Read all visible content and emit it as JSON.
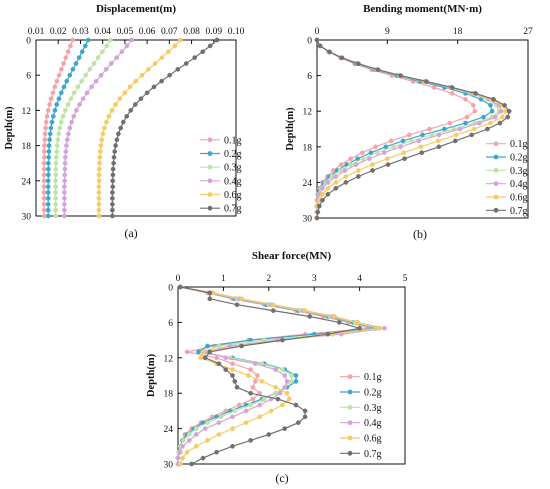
{
  "figure": {
    "series_names": [
      "0.1g",
      "0.2g",
      "0.3g",
      "0.4g",
      "0.6g",
      "0.7g"
    ],
    "series_colors": [
      "#f4a3ab",
      "#3aa7cf",
      "#bfe3a6",
      "#d4a3dc",
      "#f7cb63",
      "#707070"
    ]
  },
  "chart_data": [
    {
      "type": "line",
      "panel_label": "(a)",
      "title": "Displacement(m)",
      "xlabel": "Displacement(m)",
      "ylabel": "Depth(m)",
      "xlim": [
        0.01,
        0.1
      ],
      "ylim": [
        0,
        30
      ],
      "x_axis_position": "top",
      "y_inverted": true,
      "xticks": [
        "0.01",
        "0.02",
        "0.03",
        "0.04",
        "0.05",
        "0.06",
        "0.07",
        "0.08",
        "0.09",
        "0.10"
      ],
      "yticks": [
        "0",
        "6",
        "12",
        "18",
        "24",
        "30"
      ],
      "legend_position": "right",
      "depth": [
        0,
        1,
        2,
        3,
        4,
        5,
        6,
        7,
        8,
        9,
        10,
        11,
        12,
        13,
        14,
        15,
        16,
        17,
        18,
        19,
        20,
        21,
        22,
        23,
        24,
        25,
        26,
        27,
        28,
        29,
        30
      ],
      "series": [
        {
          "name": "0.1g",
          "values": [
            0.0265,
            0.0255,
            0.0244,
            0.0234,
            0.0224,
            0.0214,
            0.0204,
            0.0194,
            0.0185,
            0.0176,
            0.0168,
            0.0161,
            0.0155,
            0.015,
            0.0146,
            0.0143,
            0.0141,
            0.0139,
            0.0138,
            0.0137,
            0.0137,
            0.0136,
            0.0136,
            0.0136,
            0.0136,
            0.0136,
            0.0136,
            0.0136,
            0.0136,
            0.0136,
            0.0136
          ]
        },
        {
          "name": "0.2g",
          "values": [
            0.0335,
            0.0322,
            0.0308,
            0.0294,
            0.028,
            0.0266,
            0.0252,
            0.0238,
            0.0226,
            0.0214,
            0.0203,
            0.0193,
            0.0185,
            0.0178,
            0.0172,
            0.0167,
            0.0164,
            0.0161,
            0.0159,
            0.0158,
            0.0157,
            0.0156,
            0.0156,
            0.0156,
            0.0155,
            0.0155,
            0.0155,
            0.0155,
            0.0155,
            0.0155,
            0.0155
          ]
        },
        {
          "name": "0.3g",
          "values": [
            0.0435,
            0.0418,
            0.0399,
            0.038,
            0.0361,
            0.0342,
            0.0323,
            0.0305,
            0.0288,
            0.0272,
            0.0257,
            0.0244,
            0.0232,
            0.0222,
            0.0214,
            0.0207,
            0.0202,
            0.0198,
            0.0195,
            0.0193,
            0.0191,
            0.019,
            0.0189,
            0.0189,
            0.0188,
            0.0188,
            0.0188,
            0.0188,
            0.0188,
            0.0188,
            0.0188
          ]
        },
        {
          "name": "0.4g",
          "values": [
            0.053,
            0.0509,
            0.0486,
            0.0463,
            0.0439,
            0.0416,
            0.0393,
            0.0371,
            0.035,
            0.033,
            0.0312,
            0.0296,
            0.0282,
            0.027,
            0.026,
            0.0252,
            0.0246,
            0.0241,
            0.0237,
            0.0234,
            0.0232,
            0.0231,
            0.023,
            0.0229,
            0.0229,
            0.0228,
            0.0228,
            0.0228,
            0.0228,
            0.0228,
            0.0228
          ]
        },
        {
          "name": "0.6g",
          "values": [
            0.075,
            0.0724,
            0.0696,
            0.0666,
            0.0636,
            0.0606,
            0.0577,
            0.0549,
            0.0523,
            0.0499,
            0.0477,
            0.0458,
            0.0442,
            0.0428,
            0.0417,
            0.0408,
            0.0401,
            0.0396,
            0.0392,
            0.0389,
            0.0387,
            0.0386,
            0.0385,
            0.0384,
            0.0384,
            0.0383,
            0.0383,
            0.0383,
            0.0383,
            0.0383,
            0.0383
          ]
        },
        {
          "name": "0.7g",
          "values": [
            0.0915,
            0.0884,
            0.085,
            0.0814,
            0.0776,
            0.0738,
            0.0701,
            0.0665,
            0.0631,
            0.06,
            0.0572,
            0.0547,
            0.0526,
            0.0508,
            0.0493,
            0.0481,
            0.0471,
            0.0464,
            0.0458,
            0.0454,
            0.0451,
            0.0449,
            0.0447,
            0.0446,
            0.0445,
            0.0445,
            0.0444,
            0.0444,
            0.0444,
            0.0444,
            0.0444
          ]
        }
      ]
    },
    {
      "type": "line",
      "panel_label": "(b)",
      "title": "Bending moment(MN·m)",
      "xlabel": "Bending moment(MN·m)",
      "ylabel": "Depth(m)",
      "xlim": [
        0,
        27
      ],
      "ylim": [
        0,
        30
      ],
      "x_axis_position": "top",
      "y_inverted": true,
      "xticks": [
        "0",
        "9",
        "18",
        "27"
      ],
      "yticks": [
        "0",
        "6",
        "12",
        "18",
        "24",
        "30"
      ],
      "legend_position": "bottom-right",
      "depth": [
        0,
        1,
        2,
        3,
        4,
        5,
        6,
        7,
        8,
        9,
        10,
        11,
        12,
        13,
        14,
        15,
        16,
        17,
        18,
        19,
        20,
        21,
        22,
        23,
        24,
        25,
        26,
        27,
        28,
        29,
        30
      ],
      "series": [
        {
          "name": "0.1g",
          "values": [
            0,
            0.4,
            1.5,
            3.0,
            4.8,
            7.0,
            9.6,
            12.3,
            15.0,
            17.3,
            19.0,
            20.0,
            20.2,
            19.2,
            17.0,
            14.4,
            11.8,
            9.5,
            7.5,
            5.8,
            4.3,
            3.1,
            2.1,
            1.3,
            0.7,
            0.3,
            0.1,
            0.0,
            0.0,
            0.0,
            0.0
          ]
        },
        {
          "name": "0.2g",
          "values": [
            0,
            0.4,
            1.6,
            3.1,
            5.0,
            7.4,
            10.2,
            13.2,
            16.3,
            19.0,
            21.0,
            22.2,
            22.4,
            21.3,
            19.0,
            16.3,
            13.5,
            11.0,
            8.8,
            6.9,
            5.2,
            3.8,
            2.6,
            1.6,
            0.9,
            0.4,
            0.15,
            0.05,
            0.0,
            0.0,
            0.0
          ]
        },
        {
          "name": "0.3g",
          "values": [
            0,
            0.4,
            1.6,
            3.2,
            5.2,
            7.6,
            10.5,
            13.7,
            16.9,
            19.7,
            21.8,
            23.0,
            23.3,
            22.4,
            20.2,
            17.5,
            14.7,
            12.1,
            9.8,
            7.7,
            5.9,
            4.3,
            3.0,
            1.9,
            1.1,
            0.5,
            0.2,
            0.05,
            0.0,
            0.0,
            0.0
          ]
        },
        {
          "name": "0.4g",
          "values": [
            0,
            0.4,
            1.6,
            3.2,
            5.2,
            7.7,
            10.6,
            13.8,
            17.0,
            19.9,
            22.0,
            23.3,
            23.6,
            22.8,
            20.8,
            18.3,
            15.6,
            13.0,
            10.7,
            8.6,
            6.7,
            5.0,
            3.6,
            2.4,
            1.4,
            0.7,
            0.3,
            0.1,
            0.0,
            0.0,
            0.0
          ]
        },
        {
          "name": "0.6g",
          "values": [
            0,
            0.4,
            1.6,
            3.2,
            5.3,
            7.8,
            10.7,
            13.9,
            17.2,
            20.1,
            22.3,
            23.7,
            24.2,
            23.7,
            22.2,
            20.1,
            17.8,
            15.5,
            13.3,
            11.1,
            9.0,
            7.1,
            5.3,
            3.7,
            2.4,
            1.4,
            0.7,
            0.3,
            0.1,
            0.0,
            0.0
          ]
        },
        {
          "name": "0.7g",
          "values": [
            0,
            0.4,
            1.6,
            3.2,
            5.3,
            7.8,
            10.7,
            14.0,
            17.3,
            20.3,
            22.6,
            24.0,
            24.6,
            24.4,
            23.4,
            21.8,
            19.8,
            17.7,
            15.6,
            13.4,
            11.2,
            9.1,
            7.1,
            5.3,
            3.7,
            2.4,
            1.4,
            0.7,
            0.3,
            0.1,
            0.0
          ]
        }
      ]
    },
    {
      "type": "line",
      "panel_label": "(c)",
      "title": "Shear force(MN)",
      "xlabel": "Shear force(MN)",
      "ylabel": "Depth(m)",
      "xlim": [
        0,
        5
      ],
      "ylim": [
        0,
        30
      ],
      "x_axis_position": "top",
      "y_inverted": true,
      "xticks": [
        "0",
        "1",
        "2",
        "3",
        "4",
        "5"
      ],
      "yticks": [
        "0",
        "6",
        "12",
        "18",
        "24",
        "30"
      ],
      "legend_position": "bottom-right",
      "depth": [
        0,
        1,
        2,
        3,
        4,
        5,
        6,
        7,
        8,
        9,
        10,
        11,
        12,
        13,
        14,
        15,
        16,
        17,
        18,
        19,
        20,
        21,
        22,
        23,
        24,
        25,
        26,
        27,
        28,
        29,
        30
      ],
      "series": [
        {
          "name": "0.1g",
          "values": [
            0.05,
            0.65,
            1.2,
            1.9,
            2.6,
            3.2,
            3.75,
            4.2,
            2.8,
            1.55,
            0.8,
            0.2,
            0.85,
            1.2,
            1.6,
            1.75,
            1.7,
            1.65,
            1.8,
            1.65,
            1.35,
            1.05,
            0.75,
            0.5,
            0.3,
            0.15,
            0.1,
            0.05,
            0.02,
            0.0,
            0.0
          ]
        },
        {
          "name": "0.2g",
          "values": [
            0.05,
            0.7,
            1.25,
            1.95,
            2.65,
            3.3,
            3.85,
            4.35,
            3.0,
            1.6,
            0.65,
            0.45,
            1.2,
            1.9,
            2.35,
            2.6,
            2.6,
            2.4,
            2.15,
            1.85,
            1.5,
            1.15,
            0.85,
            0.55,
            0.35,
            0.2,
            0.1,
            0.05,
            0.02,
            0.0,
            0.0
          ]
        },
        {
          "name": "0.3g",
          "values": [
            0.05,
            0.72,
            1.3,
            2.0,
            2.7,
            3.35,
            3.9,
            4.42,
            3.3,
            1.9,
            0.9,
            0.55,
            1.15,
            1.85,
            2.3,
            2.5,
            2.5,
            2.35,
            2.15,
            1.9,
            1.6,
            1.25,
            0.95,
            0.65,
            0.4,
            0.25,
            0.12,
            0.05,
            0.02,
            0.0,
            0.0
          ]
        },
        {
          "name": "0.4g",
          "values": [
            0.05,
            0.75,
            1.35,
            2.05,
            2.75,
            3.4,
            3.95,
            4.55,
            3.6,
            2.2,
            1.15,
            0.6,
            1.05,
            1.7,
            2.15,
            2.35,
            2.4,
            2.35,
            2.25,
            2.05,
            1.8,
            1.5,
            1.2,
            0.9,
            0.6,
            0.4,
            0.25,
            0.1,
            0.05,
            0.0,
            0.0
          ]
        },
        {
          "name": "0.6g",
          "values": [
            0.05,
            0.78,
            1.4,
            2.1,
            2.8,
            3.45,
            3.95,
            4.45,
            3.4,
            2.3,
            1.4,
            0.55,
            0.5,
            0.85,
            1.2,
            1.55,
            1.85,
            2.15,
            2.4,
            2.45,
            2.3,
            2.05,
            1.8,
            1.5,
            1.2,
            0.9,
            0.65,
            0.4,
            0.2,
            0.1,
            0.05
          ]
        },
        {
          "name": "0.7g",
          "values": [
            0.05,
            0.7,
            0.7,
            1.3,
            2.1,
            2.9,
            3.55,
            4.0,
            3.3,
            2.3,
            1.4,
            0.7,
            0.6,
            0.9,
            1.05,
            1.2,
            1.25,
            1.3,
            1.6,
            2.2,
            2.6,
            2.8,
            2.8,
            2.65,
            2.35,
            2.0,
            1.6,
            1.2,
            0.85,
            0.55,
            0.3
          ]
        }
      ]
    }
  ]
}
